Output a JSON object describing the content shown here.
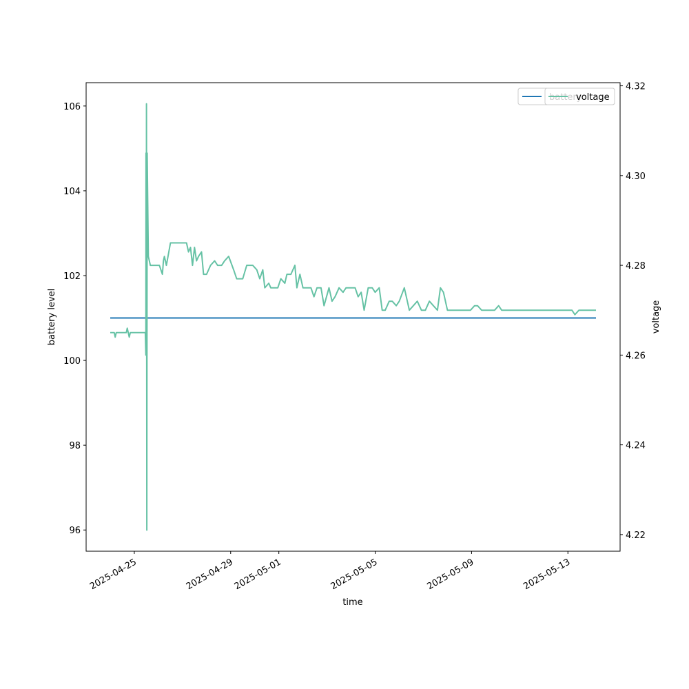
{
  "chart_data": {
    "type": "line",
    "x_label": "time",
    "y_label_left": "battery level",
    "y_label_right": "voltage",
    "xlim": [
      "2025-04-23T00:00",
      "2025-05-15T04:00"
    ],
    "ylim_left": [
      95.5,
      106.55
    ],
    "ylim_right": [
      4.2163,
      4.3207
    ],
    "x_ticks": [
      "2025-04-25",
      "2025-04-29",
      "2025-05-01",
      "2025-05-05",
      "2025-05-09",
      "2025-05-13"
    ],
    "y_ticks_left": [
      96,
      98,
      100,
      102,
      104,
      106
    ],
    "y_ticks_right": [
      "4.22",
      "4.24",
      "4.26",
      "4.28",
      "4.30",
      "4.32"
    ],
    "grid": false,
    "legend_position": "top-right",
    "series": [
      {
        "name": "battery",
        "axis": "left",
        "color": "#1f77b4",
        "points": [
          [
            "2025-04-24T00:00",
            101
          ],
          [
            "2025-05-14T04:00",
            101
          ]
        ]
      },
      {
        "name": "voltage",
        "axis": "right",
        "color": "#66c2a5",
        "points": [
          [
            "2025-04-24T00:00",
            4.265
          ],
          [
            "2025-04-24T04:00",
            4.265
          ],
          [
            "2025-04-24T05:00",
            4.264
          ],
          [
            "2025-04-24T06:00",
            4.265
          ],
          [
            "2025-04-24T16:00",
            4.265
          ],
          [
            "2025-04-24T17:00",
            4.266
          ],
          [
            "2025-04-24T19:00",
            4.264
          ],
          [
            "2025-04-24T20:00",
            4.265
          ],
          [
            "2025-04-25T11:00",
            4.265
          ],
          [
            "2025-04-25T11:30",
            4.26
          ],
          [
            "2025-04-25T11:40",
            4.305
          ],
          [
            "2025-04-25T11:50",
            4.305
          ],
          [
            "2025-04-25T12:00",
            4.27
          ],
          [
            "2025-04-25T12:10",
            4.316
          ],
          [
            "2025-04-25T12:30",
            4.221
          ],
          [
            "2025-04-25T12:50",
            4.305
          ],
          [
            "2025-04-25T14:00",
            4.282
          ],
          [
            "2025-04-25T16:00",
            4.28
          ],
          [
            "2025-04-26T01:00",
            4.28
          ],
          [
            "2025-04-26T04:00",
            4.278
          ],
          [
            "2025-04-26T05:00",
            4.281
          ],
          [
            "2025-04-26T06:00",
            4.282
          ],
          [
            "2025-04-26T08:00",
            4.28
          ],
          [
            "2025-04-26T12:00",
            4.285
          ],
          [
            "2025-04-26T16:00",
            4.285
          ],
          [
            "2025-04-27T04:00",
            4.285
          ],
          [
            "2025-04-27T06:00",
            4.283
          ],
          [
            "2025-04-27T08:00",
            4.284
          ],
          [
            "2025-04-27T10:00",
            4.28
          ],
          [
            "2025-04-27T12:00",
            4.284
          ],
          [
            "2025-04-27T14:00",
            4.281
          ],
          [
            "2025-04-27T16:00",
            4.282
          ],
          [
            "2025-04-27T19:00",
            4.283
          ],
          [
            "2025-04-27T21:00",
            4.278
          ],
          [
            "2025-04-28T00:00",
            4.278
          ],
          [
            "2025-04-28T04:00",
            4.28
          ],
          [
            "2025-04-28T08:00",
            4.281
          ],
          [
            "2025-04-28T11:00",
            4.28
          ],
          [
            "2025-04-28T15:00",
            4.28
          ],
          [
            "2025-04-28T18:00",
            4.281
          ],
          [
            "2025-04-28T22:00",
            4.282
          ],
          [
            "2025-04-29T03:00",
            4.279
          ],
          [
            "2025-04-29T06:00",
            4.277
          ],
          [
            "2025-04-29T12:00",
            4.277
          ],
          [
            "2025-04-29T16:00",
            4.28
          ],
          [
            "2025-04-29T22:00",
            4.28
          ],
          [
            "2025-04-30T02:00",
            4.279
          ],
          [
            "2025-04-30T05:00",
            4.277
          ],
          [
            "2025-04-30T08:00",
            4.279
          ],
          [
            "2025-04-30T10:00",
            4.275
          ],
          [
            "2025-04-30T14:00",
            4.276
          ],
          [
            "2025-04-30T16:00",
            4.275
          ],
          [
            "2025-04-30T20:00",
            4.275
          ],
          [
            "2025-04-30T23:00",
            4.275
          ],
          [
            "2025-05-01T02:00",
            4.277
          ],
          [
            "2025-05-01T06:00",
            4.276
          ],
          [
            "2025-05-01T08:00",
            4.278
          ],
          [
            "2025-05-01T12:00",
            4.278
          ],
          [
            "2025-05-01T16:00",
            4.28
          ],
          [
            "2025-05-01T18:00",
            4.275
          ],
          [
            "2025-05-01T21:00",
            4.278
          ],
          [
            "2025-05-02T00:00",
            4.275
          ],
          [
            "2025-05-02T04:00",
            4.275
          ],
          [
            "2025-05-02T08:00",
            4.275
          ],
          [
            "2025-05-02T11:00",
            4.273
          ],
          [
            "2025-05-02T14:00",
            4.275
          ],
          [
            "2025-05-02T18:00",
            4.275
          ],
          [
            "2025-05-02T21:00",
            4.271
          ],
          [
            "2025-05-03T02:00",
            4.275
          ],
          [
            "2025-05-03T05:00",
            4.272
          ],
          [
            "2025-05-03T08:00",
            4.273
          ],
          [
            "2025-05-03T12:00",
            4.275
          ],
          [
            "2025-05-03T16:00",
            4.274
          ],
          [
            "2025-05-03T19:00",
            4.275
          ],
          [
            "2025-05-04T00:00",
            4.275
          ],
          [
            "2025-05-04T04:00",
            4.275
          ],
          [
            "2025-05-04T07:00",
            4.273
          ],
          [
            "2025-05-04T10:00",
            4.274
          ],
          [
            "2025-05-04T13:00",
            4.27
          ],
          [
            "2025-05-04T17:00",
            4.275
          ],
          [
            "2025-05-04T21:00",
            4.275
          ],
          [
            "2025-05-05T00:00",
            4.274
          ],
          [
            "2025-05-05T04:00",
            4.275
          ],
          [
            "2025-05-05T07:00",
            4.27
          ],
          [
            "2025-05-05T10:00",
            4.27
          ],
          [
            "2025-05-05T14:00",
            4.272
          ],
          [
            "2025-05-05T17:00",
            4.272
          ],
          [
            "2025-05-05T21:00",
            4.271
          ],
          [
            "2025-05-06T00:00",
            4.272
          ],
          [
            "2025-05-06T05:00",
            4.275
          ],
          [
            "2025-05-06T10:00",
            4.27
          ],
          [
            "2025-05-06T14:00",
            4.271
          ],
          [
            "2025-05-06T18:00",
            4.272
          ],
          [
            "2025-05-06T22:00",
            4.27
          ],
          [
            "2025-05-07T02:00",
            4.27
          ],
          [
            "2025-05-07T06:00",
            4.272
          ],
          [
            "2025-05-07T10:00",
            4.271
          ],
          [
            "2025-05-07T14:00",
            4.27
          ],
          [
            "2025-05-07T17:00",
            4.275
          ],
          [
            "2025-05-07T20:00",
            4.274
          ],
          [
            "2025-05-08T00:00",
            4.27
          ],
          [
            "2025-05-08T04:00",
            4.27
          ],
          [
            "2025-05-08T20:00",
            4.27
          ],
          [
            "2025-05-08T23:00",
            4.27
          ],
          [
            "2025-05-09T03:00",
            4.271
          ],
          [
            "2025-05-09T06:00",
            4.271
          ],
          [
            "2025-05-09T10:00",
            4.27
          ],
          [
            "2025-05-09T20:00",
            4.27
          ],
          [
            "2025-05-09T23:00",
            4.27
          ],
          [
            "2025-05-10T03:00",
            4.271
          ],
          [
            "2025-05-10T06:00",
            4.27
          ],
          [
            "2025-05-10T18:00",
            4.27
          ],
          [
            "2025-05-13T04:00",
            4.27
          ],
          [
            "2025-05-13T07:00",
            4.269
          ],
          [
            "2025-05-13T11:00",
            4.27
          ],
          [
            "2025-05-14T04:00",
            4.27
          ]
        ]
      }
    ]
  }
}
